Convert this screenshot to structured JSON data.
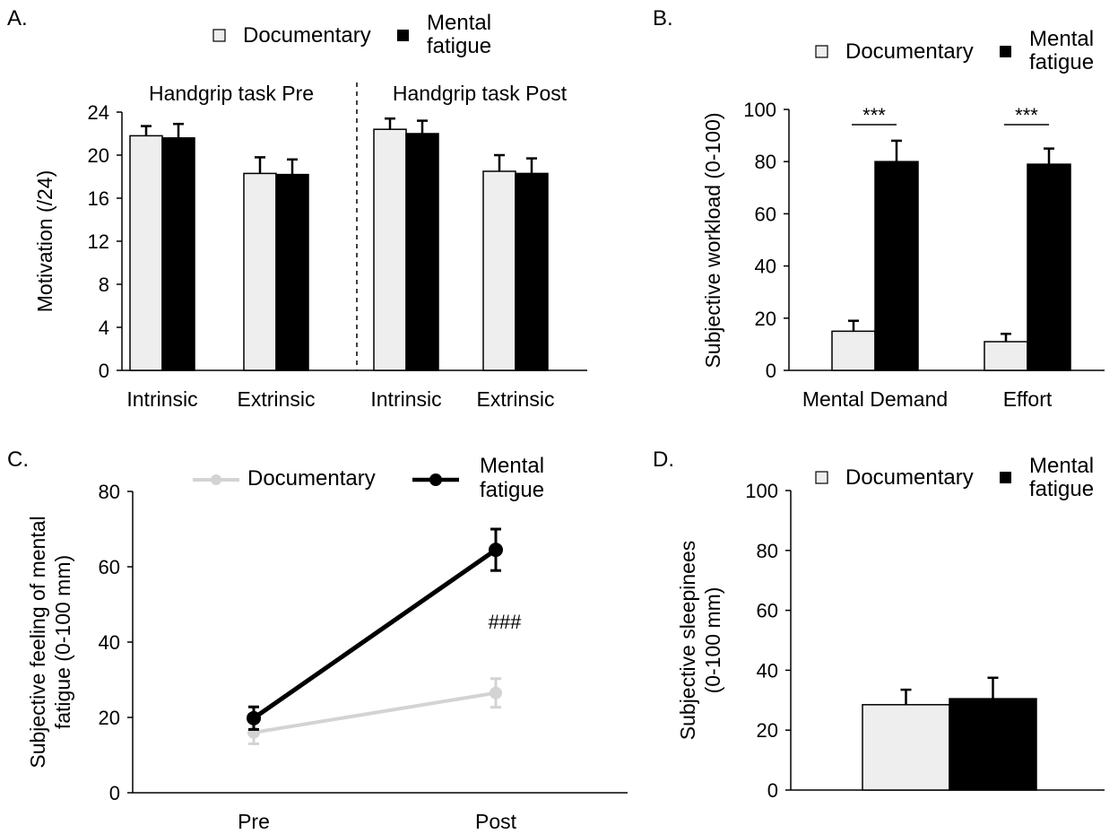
{
  "colors": {
    "documentary_fill": "#eeeeee",
    "mental_fatigue_fill": "#000000",
    "documentary_line": "#d3d3d3",
    "mental_fatigue_line": "#000000",
    "outline": "#000000"
  },
  "chart_data": [
    {
      "id": "A",
      "label": "A.",
      "type": "bar",
      "legend": [
        "Documentary",
        "Mental fatigue"
      ],
      "legend_lines": [
        [
          "Documentary"
        ],
        [
          "Mental",
          "fatigue"
        ]
      ],
      "ylabel": "Motivation (/24)",
      "ylim": [
        0,
        24
      ],
      "yticks": [
        0,
        4,
        8,
        12,
        16,
        20,
        24
      ],
      "groups": [
        {
          "title": "Handgrip task Pre",
          "categories": [
            "Intrinsic",
            "Extrinsic"
          ],
          "series": [
            {
              "name": "Documentary",
              "values": [
                21.8,
                18.3
              ],
              "errors": [
                0.9,
                1.5
              ]
            },
            {
              "name": "Mental fatigue",
              "values": [
                21.6,
                18.2
              ],
              "errors": [
                1.3,
                1.4
              ]
            }
          ]
        },
        {
          "title": "Handgrip task Post",
          "categories": [
            "Intrinsic",
            "Extrinsic"
          ],
          "series": [
            {
              "name": "Documentary",
              "values": [
                22.4,
                18.5
              ],
              "errors": [
                1.0,
                1.5
              ]
            },
            {
              "name": "Mental fatigue",
              "values": [
                22.0,
                18.3
              ],
              "errors": [
                1.2,
                1.4
              ]
            }
          ]
        }
      ]
    },
    {
      "id": "B",
      "label": "B.",
      "type": "bar",
      "legend": [
        "Documentary",
        "Mental fatigue"
      ],
      "legend_lines": [
        [
          "Documentary"
        ],
        [
          "Mental",
          "fatigue"
        ]
      ],
      "ylabel": "Subjective workload (0-100)",
      "ylim": [
        0,
        100
      ],
      "yticks": [
        0,
        20,
        40,
        60,
        80,
        100
      ],
      "categories": [
        "Mental Demand",
        "Effort"
      ],
      "series": [
        {
          "name": "Documentary",
          "values": [
            15,
            11
          ],
          "errors": [
            4,
            3
          ]
        },
        {
          "name": "Mental fatigue",
          "values": [
            80,
            79
          ],
          "errors": [
            8,
            6
          ]
        }
      ],
      "annotations": [
        "***",
        "***"
      ]
    },
    {
      "id": "C",
      "label": "C.",
      "type": "line",
      "legend": [
        "Documentary",
        "Mental fatigue"
      ],
      "legend_lines": [
        [
          "Documentary"
        ],
        [
          "Mental",
          "fatigue"
        ]
      ],
      "ylabel_lines": [
        "Subjective feeling of mental",
        "fatigue (0-100 mm)"
      ],
      "ylim": [
        0,
        80
      ],
      "yticks": [
        0,
        20,
        40,
        60,
        80
      ],
      "x": [
        "Pre",
        "Post"
      ],
      "series": [
        {
          "name": "Documentary",
          "values": [
            16,
            26.5
          ],
          "errors": [
            3,
            3.8
          ]
        },
        {
          "name": "Mental fatigue",
          "values": [
            19.8,
            64.5
          ],
          "errors": [
            3,
            5.5
          ]
        }
      ],
      "annotation": "###"
    },
    {
      "id": "D",
      "label": "D.",
      "type": "bar",
      "legend": [
        "Documentary",
        "Mental fatigue"
      ],
      "legend_lines": [
        [
          "Documentary"
        ],
        [
          "Mental",
          "fatigue"
        ]
      ],
      "ylabel_lines": [
        "Subjective sleepinees",
        "(0-100 mm)"
      ],
      "ylim": [
        0,
        100
      ],
      "yticks": [
        0,
        20,
        40,
        60,
        80,
        100
      ],
      "series": [
        {
          "name": "Documentary",
          "values": [
            28.5
          ],
          "errors": [
            5
          ]
        },
        {
          "name": "Mental fatigue",
          "values": [
            30.5
          ],
          "errors": [
            7
          ]
        }
      ]
    }
  ]
}
